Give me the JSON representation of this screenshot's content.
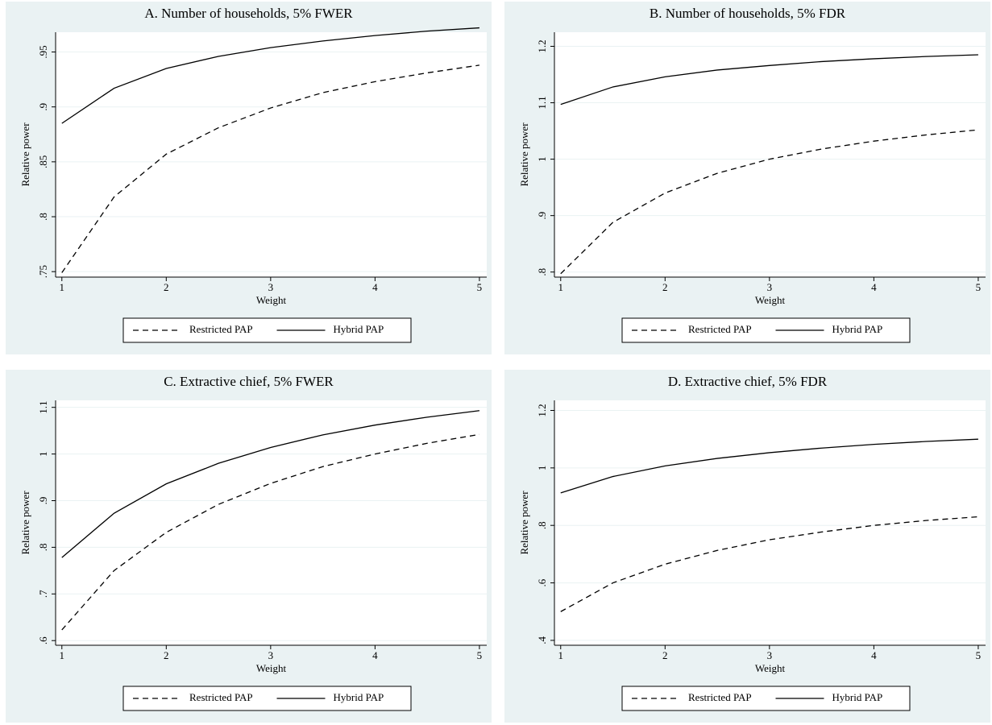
{
  "chart_data": [
    {
      "type": "line",
      "title": "A. Number of households, 5% FWER",
      "x_label": "Weight",
      "y_label": "Relative power",
      "x": [
        1,
        1.5,
        2,
        2.5,
        3,
        3.5,
        4,
        4.5,
        5
      ],
      "series": [
        {
          "name": "Restricted PAP",
          "color": "#000000",
          "style": "dashed",
          "values": [
            0.749,
            0.818,
            0.857,
            0.881,
            0.899,
            0.913,
            0.923,
            0.931,
            0.938
          ]
        },
        {
          "name": "Hybrid PAP",
          "color": "#000000",
          "style": "solid",
          "values": [
            0.885,
            0.917,
            0.935,
            0.946,
            0.954,
            0.96,
            0.965,
            0.969,
            0.972
          ]
        }
      ],
      "xlim": [
        0.94,
        5.07
      ],
      "xticks": [
        1,
        2,
        3,
        4,
        5
      ],
      "ylim": [
        0.745,
        0.968
      ],
      "yticks": [
        {
          "value": 0.75,
          "label": ".75"
        },
        {
          "value": 0.8,
          "label": ".8"
        },
        {
          "value": 0.85,
          "label": ".85"
        },
        {
          "value": 0.9,
          "label": ".9"
        },
        {
          "value": 0.95,
          "label": ".95"
        }
      ],
      "grid": true,
      "legend": "bottom"
    },
    {
      "type": "line",
      "title": "B. Number of households, 5% FDR",
      "x_label": "Weight",
      "y_label": "Relative power",
      "x": [
        1,
        1.5,
        2,
        2.5,
        3,
        3.5,
        4,
        4.5,
        5
      ],
      "series": [
        {
          "name": "Restricted PAP",
          "color": "#000000",
          "style": "dashed",
          "values": [
            0.797,
            0.888,
            0.94,
            0.975,
            1.0,
            1.018,
            1.032,
            1.043,
            1.052
          ]
        },
        {
          "name": "Hybrid PAP",
          "color": "#000000",
          "style": "solid",
          "values": [
            1.097,
            1.128,
            1.146,
            1.158,
            1.166,
            1.173,
            1.178,
            1.182,
            1.185
          ]
        }
      ],
      "xlim": [
        0.94,
        5.07
      ],
      "xticks": [
        1,
        2,
        3,
        4,
        5
      ],
      "ylim": [
        0.791,
        1.225
      ],
      "yticks": [
        {
          "value": 0.8,
          "label": ".8"
        },
        {
          "value": 0.9,
          "label": ".9"
        },
        1,
        1.1,
        1.2
      ],
      "grid": true,
      "legend": "bottom"
    },
    {
      "type": "line",
      "title": "C. Extractive chief, 5% FWER",
      "x_label": "Weight",
      "y_label": "Relative power",
      "x": [
        1,
        1.5,
        2,
        2.5,
        3,
        3.5,
        4,
        4.5,
        5
      ],
      "series": [
        {
          "name": "Restricted PAP",
          "color": "#000000",
          "style": "dashed",
          "values": [
            0.623,
            0.75,
            0.832,
            0.892,
            0.937,
            0.973,
            1.0,
            1.023,
            1.042
          ]
        },
        {
          "name": "Hybrid PAP",
          "color": "#000000",
          "style": "solid",
          "values": [
            0.778,
            0.873,
            0.936,
            0.98,
            1.014,
            1.041,
            1.062,
            1.079,
            1.093
          ]
        }
      ],
      "xlim": [
        0.94,
        5.07
      ],
      "xticks": [
        1,
        2,
        3,
        4,
        5
      ],
      "ylim": [
        0.59,
        1.115
      ],
      "yticks": [
        {
          "value": 0.6,
          "label": ".6"
        },
        {
          "value": 0.7,
          "label": ".7"
        },
        {
          "value": 0.8,
          "label": ".8"
        },
        {
          "value": 0.9,
          "label": ".9"
        },
        1,
        1.1
      ],
      "grid": true,
      "legend": "bottom"
    },
    {
      "type": "line",
      "title": "D. Extractive chief, 5% FDR",
      "x_label": "Weight",
      "y_label": "Relative power",
      "x": [
        1,
        1.5,
        2,
        2.5,
        3,
        3.5,
        4,
        4.5,
        5
      ],
      "series": [
        {
          "name": "Restricted PAP",
          "color": "#000000",
          "style": "dashed",
          "values": [
            0.5,
            0.6,
            0.665,
            0.713,
            0.75,
            0.777,
            0.8,
            0.817,
            0.83
          ]
        },
        {
          "name": "Hybrid PAP",
          "color": "#000000",
          "style": "solid",
          "values": [
            0.913,
            0.97,
            1.007,
            1.033,
            1.053,
            1.069,
            1.082,
            1.092,
            1.1
          ]
        }
      ],
      "xlim": [
        0.94,
        5.07
      ],
      "xticks": [
        1,
        2,
        3,
        4,
        5
      ],
      "ylim": [
        0.383,
        1.235
      ],
      "yticks": [
        {
          "value": 0.4,
          "label": ".4"
        },
        {
          "value": 0.6,
          "label": ".6"
        },
        {
          "value": 0.8,
          "label": ".8"
        },
        1,
        1.2
      ],
      "grid": true,
      "legend": "bottom"
    }
  ]
}
